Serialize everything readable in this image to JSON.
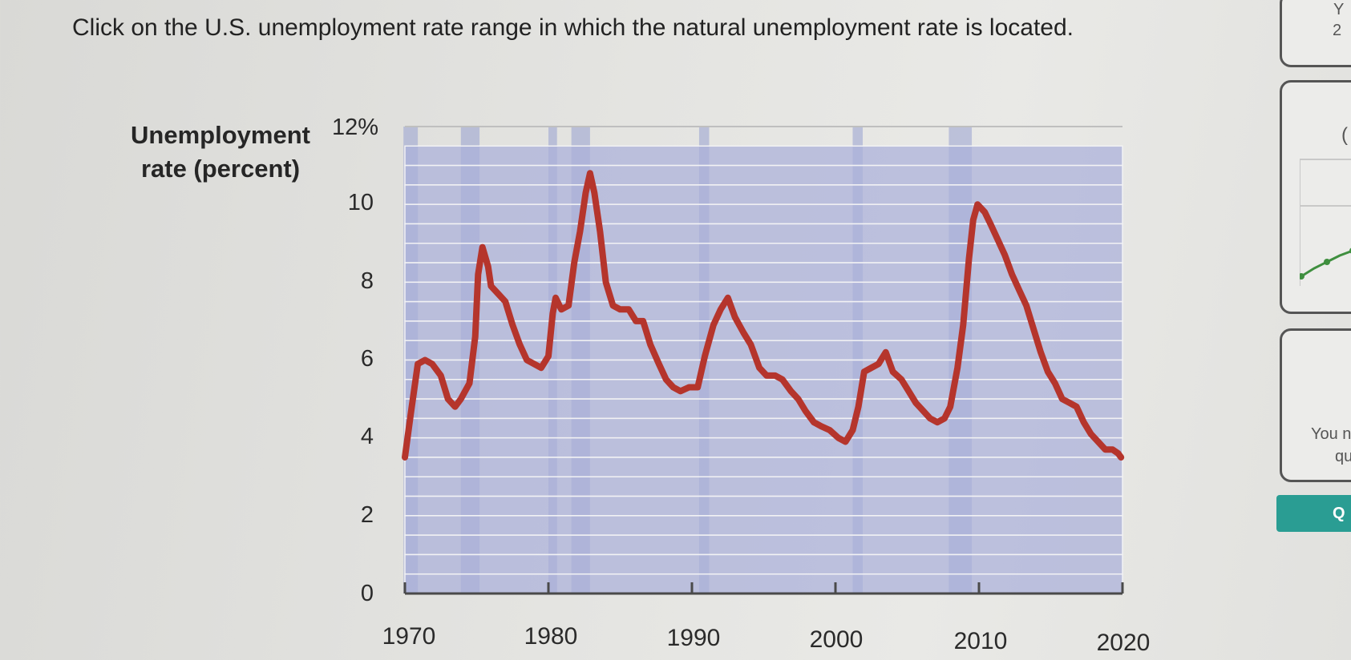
{
  "question": "Click on the U.S. unemployment rate range in which the natural unemployment rate is located.",
  "side_panel": {
    "card1_letters": [
      "Y",
      "2"
    ],
    "card2_letter": "(",
    "card3_text": [
      "You n",
      "qu"
    ],
    "button_label": "Q"
  },
  "colors": {
    "line": "#b5352c",
    "band": "#aab0da",
    "recession": "#98a1cf",
    "accent_button": "#2a9d93"
  },
  "chart_data": {
    "type": "line",
    "title": "",
    "ylabel_lines": [
      "Unemployment",
      "rate (percent)"
    ],
    "xlabel": "",
    "ylim": [
      0,
      12
    ],
    "xlim": [
      1970,
      2020
    ],
    "y_ticks": [
      "12%",
      "10",
      "8",
      "6",
      "4",
      "2",
      "0"
    ],
    "x_ticks": [
      "1970",
      "1980",
      "1990",
      "2000",
      "2010",
      "2020"
    ],
    "selectable_ranges": [
      [
        11.5,
        12
      ],
      [
        11,
        11.5
      ],
      [
        10.5,
        11
      ],
      [
        10,
        10.5
      ],
      [
        9.5,
        10
      ],
      [
        9,
        9.5
      ],
      [
        8.5,
        9
      ],
      [
        8,
        8.5
      ],
      [
        7.5,
        8
      ],
      [
        7,
        7.5
      ],
      [
        6.5,
        7
      ],
      [
        6,
        6.5
      ],
      [
        5.5,
        6
      ],
      [
        5,
        5.5
      ],
      [
        4.5,
        5
      ],
      [
        4,
        4.5
      ],
      [
        3.5,
        4
      ],
      [
        3,
        3.5
      ],
      [
        2.5,
        3
      ],
      [
        2,
        2.5
      ],
      [
        1.5,
        2
      ],
      [
        1,
        1.5
      ],
      [
        0.5,
        1
      ],
      [
        0,
        0.5
      ]
    ],
    "recessions": [
      [
        1969.9,
        1970.9
      ],
      [
        1973.9,
        1975.2
      ],
      [
        1980.0,
        1980.6
      ],
      [
        1981.6,
        1982.9
      ],
      [
        1990.5,
        1991.2
      ],
      [
        2001.2,
        2001.9
      ],
      [
        2007.9,
        2009.5
      ]
    ],
    "series": [
      {
        "values": [
          [
            1970.0,
            3.5
          ],
          [
            1970.4,
            4.6
          ],
          [
            1970.9,
            5.9
          ],
          [
            1971.4,
            6.0
          ],
          [
            1971.9,
            5.9
          ],
          [
            1972.5,
            5.6
          ],
          [
            1973.0,
            5.0
          ],
          [
            1973.5,
            4.8
          ],
          [
            1973.9,
            5.0
          ],
          [
            1974.5,
            5.4
          ],
          [
            1974.9,
            6.6
          ],
          [
            1975.1,
            8.2
          ],
          [
            1975.4,
            8.9
          ],
          [
            1975.8,
            8.4
          ],
          [
            1976.0,
            7.9
          ],
          [
            1976.5,
            7.7
          ],
          [
            1977.0,
            7.5
          ],
          [
            1977.5,
            6.9
          ],
          [
            1978.0,
            6.4
          ],
          [
            1978.5,
            6.0
          ],
          [
            1979.0,
            5.9
          ],
          [
            1979.5,
            5.8
          ],
          [
            1980.0,
            6.1
          ],
          [
            1980.3,
            7.2
          ],
          [
            1980.5,
            7.6
          ],
          [
            1980.9,
            7.3
          ],
          [
            1981.4,
            7.4
          ],
          [
            1981.8,
            8.5
          ],
          [
            1982.2,
            9.3
          ],
          [
            1982.6,
            10.3
          ],
          [
            1982.9,
            10.8
          ],
          [
            1983.2,
            10.3
          ],
          [
            1983.6,
            9.3
          ],
          [
            1984.0,
            8.0
          ],
          [
            1984.5,
            7.4
          ],
          [
            1985.0,
            7.3
          ],
          [
            1985.6,
            7.3
          ],
          [
            1986.1,
            7.0
          ],
          [
            1986.6,
            7.0
          ],
          [
            1987.1,
            6.4
          ],
          [
            1987.7,
            5.9
          ],
          [
            1988.2,
            5.5
          ],
          [
            1988.7,
            5.3
          ],
          [
            1989.2,
            5.2
          ],
          [
            1989.8,
            5.3
          ],
          [
            1990.4,
            5.3
          ],
          [
            1990.9,
            6.1
          ],
          [
            1991.5,
            6.9
          ],
          [
            1992.0,
            7.3
          ],
          [
            1992.5,
            7.6
          ],
          [
            1993.0,
            7.1
          ],
          [
            1993.6,
            6.7
          ],
          [
            1994.1,
            6.4
          ],
          [
            1994.7,
            5.8
          ],
          [
            1995.2,
            5.6
          ],
          [
            1995.8,
            5.6
          ],
          [
            1996.3,
            5.5
          ],
          [
            1996.9,
            5.2
          ],
          [
            1997.4,
            5.0
          ],
          [
            1997.9,
            4.7
          ],
          [
            1998.5,
            4.4
          ],
          [
            1999.0,
            4.3
          ],
          [
            1999.6,
            4.2
          ],
          [
            2000.2,
            4.0
          ],
          [
            2000.7,
            3.9
          ],
          [
            2001.2,
            4.2
          ],
          [
            2001.6,
            4.8
          ],
          [
            2002.0,
            5.7
          ],
          [
            2002.5,
            5.8
          ],
          [
            2003.0,
            5.9
          ],
          [
            2003.5,
            6.2
          ],
          [
            2004.0,
            5.7
          ],
          [
            2004.6,
            5.5
          ],
          [
            2005.1,
            5.2
          ],
          [
            2005.6,
            4.9
          ],
          [
            2006.1,
            4.7
          ],
          [
            2006.6,
            4.5
          ],
          [
            2007.1,
            4.4
          ],
          [
            2007.6,
            4.5
          ],
          [
            2008.0,
            4.8
          ],
          [
            2008.5,
            5.8
          ],
          [
            2008.9,
            6.9
          ],
          [
            2009.3,
            8.6
          ],
          [
            2009.6,
            9.6
          ],
          [
            2009.9,
            10.0
          ],
          [
            2010.4,
            9.8
          ],
          [
            2010.8,
            9.5
          ],
          [
            2011.3,
            9.1
          ],
          [
            2011.8,
            8.7
          ],
          [
            2012.3,
            8.2
          ],
          [
            2012.8,
            7.8
          ],
          [
            2013.3,
            7.4
          ],
          [
            2013.8,
            6.8
          ],
          [
            2014.3,
            6.2
          ],
          [
            2014.8,
            5.7
          ],
          [
            2015.3,
            5.4
          ],
          [
            2015.8,
            5.0
          ],
          [
            2016.3,
            4.9
          ],
          [
            2016.8,
            4.8
          ],
          [
            2017.3,
            4.4
          ],
          [
            2017.8,
            4.1
          ],
          [
            2018.3,
            3.9
          ],
          [
            2018.8,
            3.7
          ],
          [
            2019.3,
            3.7
          ],
          [
            2019.7,
            3.6
          ],
          [
            2019.9,
            3.5
          ]
        ]
      }
    ]
  }
}
